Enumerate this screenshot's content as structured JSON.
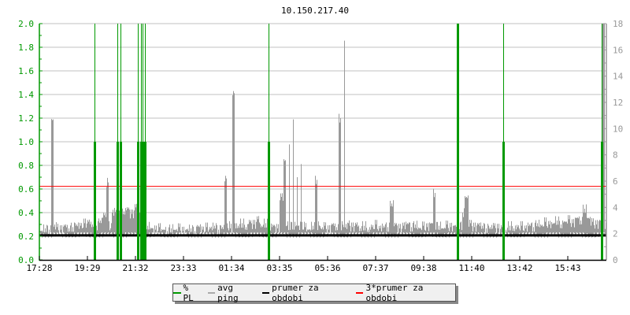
{
  "chart_data": {
    "type": "line",
    "title": "10.150.217.40",
    "x_tick_labels": [
      "17:28",
      "19:29",
      "21:32",
      "23:33",
      "01:34",
      "03:35",
      "05:36",
      "07:37",
      "09:38",
      "11:40",
      "13:42",
      "15:43"
    ],
    "x_start": "17:28",
    "x_step_minutes": 10,
    "y_left": {
      "range": [
        0,
        2.0
      ],
      "ticks": [
        "0.0",
        "0.2",
        "0.4",
        "0.6",
        "0.8",
        "1.0",
        "1.2",
        "1.4",
        "1.6",
        "1.8",
        "2.0"
      ],
      "color": "#009900"
    },
    "y_right": {
      "range": [
        0,
        18
      ],
      "ticks": [
        "0",
        "2",
        "4",
        "6",
        "8",
        "10",
        "12",
        "14",
        "16",
        "18"
      ],
      "color": "#999999"
    },
    "grid": true,
    "legend_position": "bottom",
    "series": [
      {
        "name": "% PL",
        "color": "#009900",
        "axis": "left",
        "events": [
          {
            "time": "19:48",
            "value": 1.0
          },
          {
            "time": "20:46",
            "value": 1.0
          },
          {
            "time": "20:54",
            "value": 1.0
          },
          {
            "time": "21:38",
            "value": 1.0
          },
          {
            "time": "21:46",
            "value": 1.0
          },
          {
            "time": "21:50",
            "value": 1.0
          },
          {
            "time": "21:56",
            "value": 1.0
          },
          {
            "time": "03:10",
            "value": 1.0
          },
          {
            "time": "11:10",
            "value": 2.0
          },
          {
            "time": "13:06",
            "value": 1.0
          },
          {
            "time": "17:16",
            "value": 1.0
          }
        ]
      },
      {
        "name": "avg ping",
        "color": "#999999",
        "axis": "right",
        "values": [
          2.2,
          2.4,
          2.3,
          10.7,
          2.5,
          2.3,
          2.6,
          2.4,
          2.5,
          2.7,
          2.6,
          2.8,
          2.9,
          2.7,
          2.6,
          3.0,
          3.4,
          5.9,
          3.6,
          3.8,
          4.1,
          3.7,
          3.9,
          3.5,
          4.0,
          3.6,
          3.2,
          2.6,
          2.4,
          2.3,
          2.5,
          2.3,
          2.2,
          2.4,
          2.3,
          2.5,
          2.2,
          2.3,
          2.4,
          2.2,
          2.6,
          2.3,
          2.5,
          2.4,
          2.6,
          2.3,
          2.5,
          6.2,
          2.4,
          12.7,
          2.6,
          2.8,
          2.5,
          2.9,
          2.7,
          3.1,
          2.6,
          2.8,
          2.5,
          2.6,
          2.4,
          4.8,
          7.6,
          8.8,
          10.7,
          6.3,
          7.3,
          2.5,
          2.3,
          2.6,
          6.1,
          2.4,
          2.6,
          2.3,
          2.7,
          2.5,
          10.8,
          16.7,
          2.8,
          2.5,
          2.7,
          2.4,
          2.6,
          2.3,
          2.5,
          2.7,
          2.4,
          2.6,
          2.5,
          4.3,
          2.7,
          2.4,
          2.6,
          2.8,
          2.5,
          2.7,
          2.4,
          2.6,
          2.5,
          2.8,
          5.1,
          2.6,
          2.4,
          2.7,
          2.5,
          2.6,
          11.1,
          3.6,
          4.8,
          2.8,
          2.5,
          2.7,
          2.6,
          2.4,
          2.5,
          2.6,
          2.4,
          2.5,
          2.3,
          2.6,
          2.4,
          2.5,
          2.6,
          2.4,
          2.7,
          2.5,
          2.8,
          2.6,
          2.9,
          2.7,
          2.8,
          3.0,
          2.7,
          2.9,
          3.1,
          2.8,
          3.2,
          3.0,
          3.9,
          3.2,
          2.9,
          2.7,
          3.0,
          19
        ]
      },
      {
        "name": "prumer za obdobi",
        "color": "#000000",
        "axis": "right",
        "value": 1.87
      },
      {
        "name": "3*prumer za obdobi",
        "color": "#ff0000",
        "axis": "right",
        "value": 5.6
      }
    ]
  }
}
